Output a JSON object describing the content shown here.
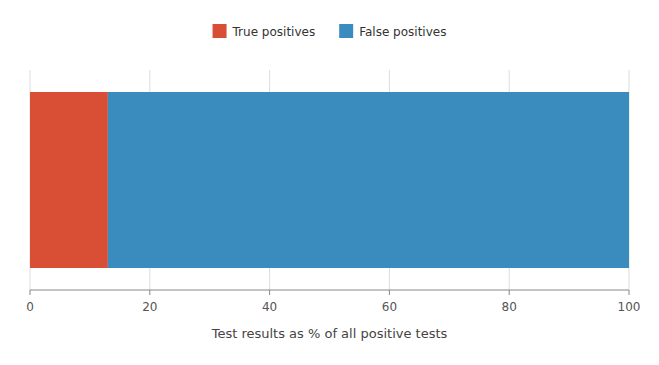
{
  "chart_data": {
    "type": "bar",
    "orientation": "horizontal",
    "stacked": true,
    "categories": [
      null
    ],
    "series": [
      {
        "name": "True positives",
        "color": "#D94F35",
        "values": [
          13.0
        ]
      },
      {
        "name": "False positives",
        "color": "#3A8BBE",
        "values": [
          87.0
        ]
      }
    ],
    "xlabel": "Test results as % of all positive tests",
    "xlim": [
      0,
      100
    ],
    "xticks": [
      0,
      20,
      40,
      60,
      80,
      100
    ],
    "grid": true,
    "legend": "top",
    "tick_labels": "x"
  }
}
